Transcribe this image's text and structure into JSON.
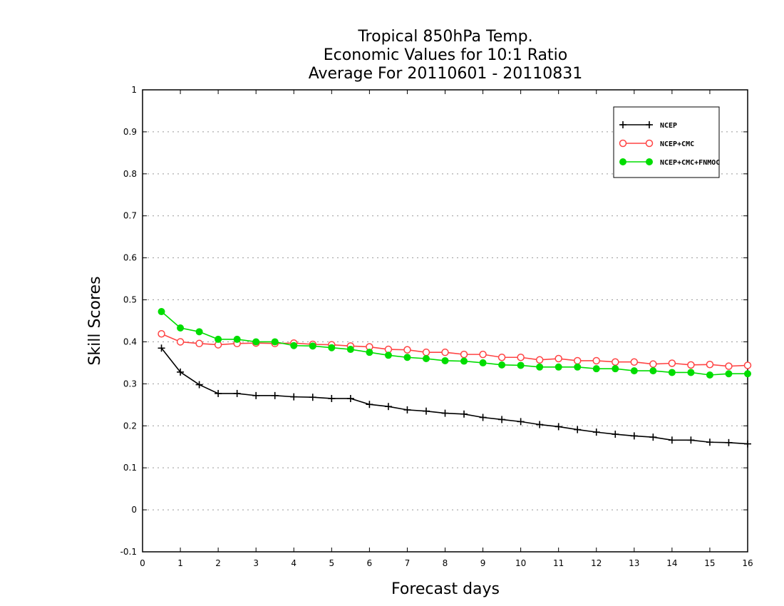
{
  "chart_data": {
    "type": "line",
    "title": [
      "Tropical 850hPa Temp.",
      "Economic Values for 10:1 Ratio",
      "Average For 20110601 - 20110831"
    ],
    "xlabel": "Forecast days",
    "ylabel": "Skill Scores",
    "xlim": [
      0,
      16
    ],
    "ylim": [
      -0.1,
      1
    ],
    "xticks": [
      "0",
      "1",
      "2",
      "3",
      "4",
      "5",
      "6",
      "7",
      "8",
      "9",
      "10",
      "11",
      "12",
      "13",
      "14",
      "15",
      "16"
    ],
    "yticks": [
      "1",
      "0.9",
      "0.8",
      "0.7",
      "0.6",
      "0.5",
      "0.4",
      "0.3",
      "0.2",
      "0.1",
      "0",
      "-0.1"
    ],
    "grid": true,
    "legend_position": "top-right",
    "x": [
      0.5,
      1,
      1.5,
      2,
      2.5,
      3,
      3.5,
      4,
      4.5,
      5,
      5.5,
      6,
      6.5,
      7,
      7.5,
      8,
      8.5,
      9,
      9.5,
      10,
      10.5,
      11,
      11.5,
      12,
      12.5,
      13,
      13.5,
      14,
      14.5,
      15,
      15.5,
      16
    ],
    "series": [
      {
        "name": "NCEP",
        "color": "#000000",
        "marker": "plus",
        "values": [
          0.385,
          0.328,
          0.298,
          0.277,
          0.277,
          0.272,
          0.272,
          0.269,
          0.268,
          0.265,
          0.265,
          0.251,
          0.246,
          0.238,
          0.235,
          0.23,
          0.228,
          0.22,
          0.215,
          0.21,
          0.203,
          0.198,
          0.191,
          0.185,
          0.18,
          0.176,
          0.173,
          0.166,
          0.166,
          0.161,
          0.16,
          0.157
        ]
      },
      {
        "name": "NCEP+CMC",
        "color": "#ff4444",
        "marker": "open-circle",
        "values": [
          0.419,
          0.4,
          0.396,
          0.393,
          0.396,
          0.397,
          0.396,
          0.397,
          0.394,
          0.393,
          0.39,
          0.388,
          0.382,
          0.381,
          0.375,
          0.375,
          0.37,
          0.37,
          0.363,
          0.363,
          0.357,
          0.36,
          0.355,
          0.355,
          0.352,
          0.352,
          0.347,
          0.349,
          0.345,
          0.346,
          0.342,
          0.344
        ]
      },
      {
        "name": "NCEP+CMC+FNMOC",
        "color": "#00dd00",
        "marker": "filled-circle",
        "values": [
          0.472,
          0.433,
          0.424,
          0.406,
          0.406,
          0.4,
          0.4,
          0.391,
          0.39,
          0.386,
          0.382,
          0.375,
          0.368,
          0.363,
          0.36,
          0.355,
          0.354,
          0.35,
          0.345,
          0.344,
          0.34,
          0.34,
          0.34,
          0.336,
          0.336,
          0.331,
          0.331,
          0.327,
          0.327,
          0.321,
          0.324,
          0.324
        ]
      }
    ]
  }
}
